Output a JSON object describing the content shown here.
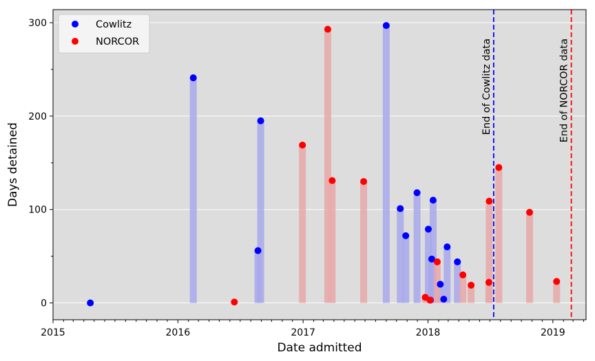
{
  "chart_data": {
    "type": "scatter",
    "title": "",
    "xlabel": "Date admitted",
    "ylabel": "Days detained",
    "xlim": [
      "2015-01-01",
      "2019-04-08"
    ],
    "ylim": [
      -18,
      314
    ],
    "x_ticks": [
      {
        "date": "2015-01-01",
        "label": "2015"
      },
      {
        "date": "2016-01-01",
        "label": "2016"
      },
      {
        "date": "2017-01-01",
        "label": "2017"
      },
      {
        "date": "2018-01-01",
        "label": "2018"
      },
      {
        "date": "2019-01-01",
        "label": "2019"
      }
    ],
    "y_ticks": [
      0,
      100,
      200,
      300
    ],
    "y_minor_ticks": [
      50,
      150,
      250
    ],
    "grid": "y-major",
    "background": "#dddddd",
    "legend": {
      "placement": "top-left"
    },
    "series": [
      {
        "name": "Cowlitz",
        "color": "#0000ff",
        "bar_color": "#a8a8ec",
        "points": [
          {
            "date": "2015-04-20",
            "days": 0
          },
          {
            "date": "2016-02-15",
            "days": 241
          },
          {
            "date": "2016-08-22",
            "days": 56
          },
          {
            "date": "2016-08-30",
            "days": 195
          },
          {
            "date": "2017-09-01",
            "days": 297
          },
          {
            "date": "2017-10-12",
            "days": 101
          },
          {
            "date": "2017-10-28",
            "days": 72
          },
          {
            "date": "2017-11-30",
            "days": 118
          },
          {
            "date": "2018-01-02",
            "days": 79
          },
          {
            "date": "2018-01-08",
            "days": 3
          },
          {
            "date": "2018-01-12",
            "days": 47
          },
          {
            "date": "2018-01-16",
            "days": 110
          },
          {
            "date": "2018-02-06",
            "days": 20
          },
          {
            "date": "2018-02-16",
            "days": 4
          },
          {
            "date": "2018-02-26",
            "days": 60
          },
          {
            "date": "2018-03-28",
            "days": 44
          }
        ]
      },
      {
        "name": "NORCOR",
        "color": "#ff0000",
        "bar_color": "#e8a8a8",
        "points": [
          {
            "date": "2016-06-14",
            "days": 1
          },
          {
            "date": "2016-12-30",
            "days": 169
          },
          {
            "date": "2017-03-14",
            "days": 293
          },
          {
            "date": "2017-03-27",
            "days": 131
          },
          {
            "date": "2017-06-27",
            "days": 130
          },
          {
            "date": "2017-12-24",
            "days": 6
          },
          {
            "date": "2018-01-07",
            "days": 3
          },
          {
            "date": "2018-01-28",
            "days": 44
          },
          {
            "date": "2018-04-13",
            "days": 30
          },
          {
            "date": "2018-05-07",
            "days": 19
          },
          {
            "date": "2018-06-28",
            "days": 22
          },
          {
            "date": "2018-06-29",
            "days": 109
          },
          {
            "date": "2018-07-27",
            "days": 145
          },
          {
            "date": "2018-10-25",
            "days": 97
          },
          {
            "date": "2019-01-12",
            "days": 23
          }
        ]
      }
    ],
    "reference_lines": [
      {
        "date": "2018-07-12",
        "label": "End of Cowlitz data",
        "color": "#0000ff",
        "style": "dashed"
      },
      {
        "date": "2019-02-24",
        "label": "End of NORCOR data",
        "color": "#ff0000",
        "style": "dashed"
      }
    ]
  }
}
